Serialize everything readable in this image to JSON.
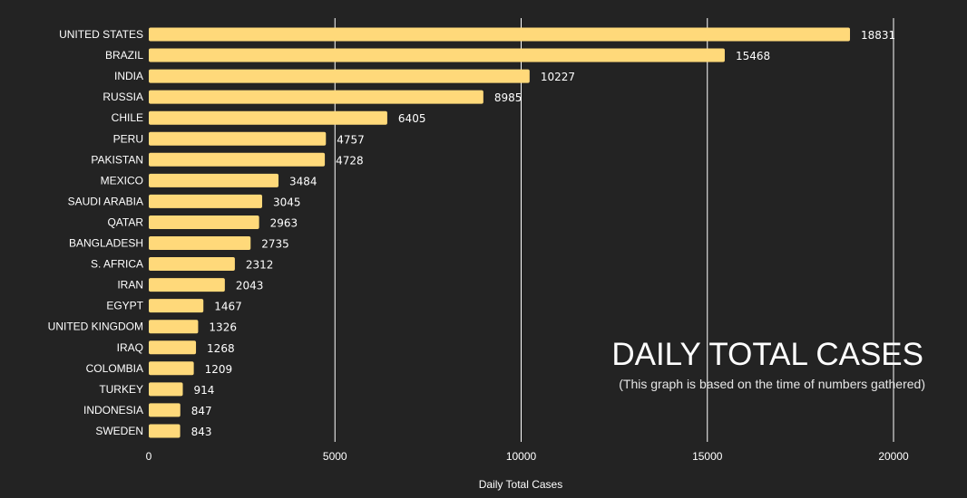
{
  "chart_data": {
    "type": "bar",
    "orientation": "horizontal",
    "title": "DAILY TOTAL CASES",
    "subtitle": "(This graph is based on the time of numbers gathered)",
    "xlabel": "Daily Total Cases",
    "ylabel": "",
    "xlim": [
      0,
      20000
    ],
    "xticks": [
      0,
      5000,
      10000,
      15000,
      20000
    ],
    "grid": "vertical",
    "legend": "none",
    "categories": [
      "UNITED STATES",
      "BRAZIL",
      "INDIA",
      "RUSSIA",
      "CHILE",
      "PERU",
      "PAKISTAN",
      "MEXICO",
      "SAUDI ARABIA",
      "QATAR",
      "BANGLADESH",
      "S. AFRICA",
      "IRAN",
      "EGYPT",
      "UNITED KINGDOM",
      "IRAQ",
      "COLOMBIA",
      "TURKEY",
      "INDONESIA",
      "SWEDEN"
    ],
    "values": [
      18831,
      15468,
      10227,
      8985,
      6405,
      4757,
      4728,
      3484,
      3045,
      2963,
      2735,
      2312,
      2043,
      1467,
      1326,
      1268,
      1209,
      914,
      847,
      843
    ],
    "colors": {
      "bar": "#ffd97a",
      "background": "#232323",
      "grid": "#ffffff",
      "text": "#ffffff"
    }
  }
}
